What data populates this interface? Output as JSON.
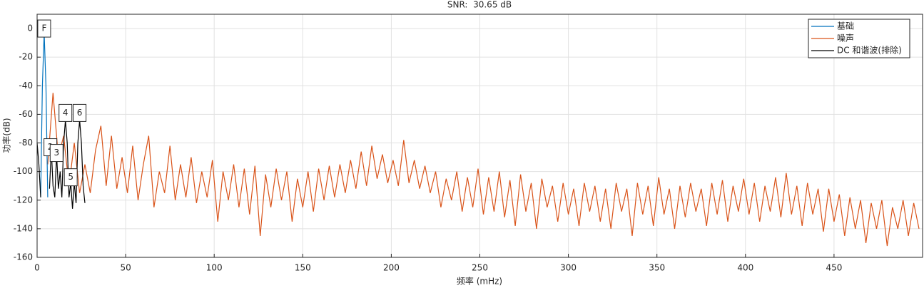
{
  "chart_data": {
    "type": "line",
    "title": "SNR:  30.65 dB",
    "x_label": "频率 (mHz)",
    "y_label": "功率(dB)",
    "xlim": [
      0,
      500
    ],
    "ylim": [
      -160,
      10
    ],
    "xticks": [
      0,
      50,
      100,
      150,
      200,
      250,
      300,
      350,
      400,
      450
    ],
    "yticks": [
      0,
      -20,
      -40,
      -60,
      -80,
      -100,
      -120,
      -140,
      -160
    ],
    "grid": true,
    "legend": "top-right",
    "series": [
      {
        "name": "基础",
        "color": "#0072bd",
        "x": [
          2,
          3,
          4,
          5,
          6
        ],
        "values": [
          -118,
          -40,
          -3,
          -40,
          -118
        ]
      },
      {
        "name": "噪声",
        "color": "#d95319",
        "x": [
          6,
          9,
          12,
          15,
          18,
          21,
          24,
          27,
          30,
          33,
          36,
          39,
          42,
          45,
          48,
          51,
          54,
          57,
          60,
          63,
          66,
          69,
          72,
          75,
          78,
          81,
          84,
          87,
          90,
          93,
          96,
          99,
          102,
          105,
          108,
          111,
          114,
          117,
          120,
          123,
          126,
          129,
          132,
          135,
          138,
          141,
          144,
          147,
          150,
          153,
          156,
          159,
          162,
          165,
          168,
          171,
          174,
          177,
          180,
          183,
          186,
          189,
          192,
          195,
          198,
          201,
          204,
          207,
          210,
          213,
          216,
          219,
          222,
          225,
          228,
          231,
          234,
          237,
          240,
          243,
          246,
          249,
          252,
          255,
          258,
          261,
          264,
          267,
          270,
          273,
          276,
          279,
          282,
          285,
          288,
          291,
          294,
          297,
          300,
          303,
          306,
          309,
          312,
          315,
          318,
          321,
          324,
          327,
          330,
          333,
          336,
          339,
          342,
          345,
          348,
          351,
          354,
          357,
          360,
          363,
          366,
          369,
          372,
          375,
          378,
          381,
          384,
          387,
          390,
          393,
          396,
          399,
          402,
          405,
          408,
          411,
          414,
          417,
          420,
          423,
          426,
          429,
          432,
          435,
          438,
          441,
          444,
          447,
          450,
          453,
          456,
          459,
          462,
          465,
          468,
          471,
          474,
          477,
          480,
          483,
          486,
          489,
          492,
          495,
          498
        ],
        "values": [
          -95,
          -45,
          -90,
          -75,
          -110,
          -80,
          -115,
          -95,
          -115,
          -85,
          -68,
          -110,
          -75,
          -112,
          -90,
          -115,
          -82,
          -120,
          -95,
          -75,
          -125,
          -100,
          -115,
          -82,
          -120,
          -95,
          -118,
          -90,
          -122,
          -100,
          -118,
          -92,
          -135,
          -100,
          -120,
          -95,
          -125,
          -98,
          -130,
          -96,
          -145,
          -102,
          -125,
          -98,
          -120,
          -100,
          -135,
          -105,
          -125,
          -100,
          -128,
          -98,
          -120,
          -96,
          -118,
          -95,
          -115,
          -92,
          -112,
          -86,
          -110,
          -82,
          -105,
          -88,
          -108,
          -92,
          -110,
          -78,
          -108,
          -92,
          -112,
          -96,
          -115,
          -100,
          -125,
          -105,
          -120,
          -100,
          -128,
          -104,
          -125,
          -98,
          -130,
          -104,
          -128,
          -100,
          -132,
          -106,
          -138,
          -102,
          -128,
          -108,
          -140,
          -105,
          -125,
          -110,
          -135,
          -108,
          -130,
          -112,
          -138,
          -108,
          -128,
          -110,
          -135,
          -112,
          -140,
          -108,
          -128,
          -112,
          -145,
          -108,
          -130,
          -110,
          -138,
          -104,
          -130,
          -112,
          -140,
          -110,
          -132,
          -108,
          -128,
          -112,
          -138,
          -108,
          -130,
          -106,
          -135,
          -110,
          -128,
          -105,
          -130,
          -108,
          -135,
          -110,
          -128,
          -104,
          -132,
          -101,
          -130,
          -110,
          -138,
          -108,
          -130,
          -112,
          -142,
          -112,
          -135,
          -116,
          -145,
          -118,
          -140,
          -120,
          -150,
          -122,
          -140,
          -120,
          -152,
          -125,
          -140,
          -120,
          -145,
          -122,
          -140
        ]
      },
      {
        "name": "DC 和谐波(排除)",
        "color": "#000000",
        "x": [
          0,
          1,
          2,
          4,
          7,
          8,
          9,
          10,
          11,
          12,
          13,
          14,
          15,
          16,
          17,
          18,
          19,
          20,
          21,
          22,
          23,
          24,
          25,
          26,
          27
        ],
        "values": [
          -80,
          -95,
          -118,
          null,
          -112,
          -84,
          -110,
          -118,
          -88,
          -112,
          -100,
          -118,
          -80,
          -64,
          -80,
          -118,
          -108,
          -126,
          -108,
          -122,
          -80,
          -64,
          -80,
          -110,
          -122
        ]
      }
    ],
    "markers": [
      {
        "label": "F",
        "x": 4,
        "y": 0
      },
      {
        "label": "2",
        "x": 7.5,
        "y": -83
      },
      {
        "label": "3",
        "x": 11,
        "y": -87
      },
      {
        "label": "4",
        "x": 16,
        "y": -59
      },
      {
        "label": "5",
        "x": 19,
        "y": -104
      },
      {
        "label": "6",
        "x": 24,
        "y": -59
      }
    ]
  }
}
